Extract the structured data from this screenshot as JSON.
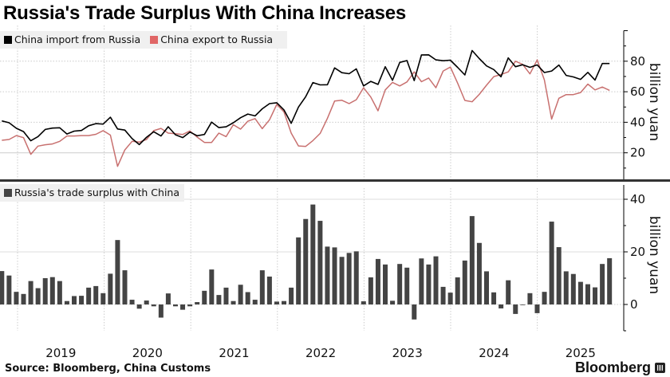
{
  "title": "Russia's Trade Surplus With China Increases",
  "source": "Source: Bloomberg, China Customs",
  "brand": "Bloomberg",
  "colors": {
    "import": "#000000",
    "export": "#c8706f",
    "surplus": "#444444",
    "grid": "#cccccc"
  },
  "chart_data": [
    {
      "type": "line",
      "legend": [
        "China import from Russia",
        "China export to Russia"
      ],
      "legend_position": "top-left",
      "ylabel": "billion yuan",
      "ylim": [
        0,
        100
      ],
      "yticks": [
        "20",
        "40",
        "60",
        "80"
      ],
      "xticks": [
        "2019",
        "2020",
        "2021",
        "2022",
        "2023",
        "2024",
        "2025"
      ],
      "grid": true,
      "series": [
        {
          "name": "China import from Russia",
          "values": [
            40.9,
            39.7,
            36.1,
            33.9,
            27.9,
            30.6,
            35.3,
            36.2,
            36.4,
            32.3,
            34.2,
            34.6,
            37.7,
            39.1,
            38.8,
            43.3,
            35.6,
            34.9,
            29.3,
            25.4,
            30.2,
            33.8,
            31.0,
            37.1,
            31.8,
            30.0,
            33.6,
            31.2,
            32.0,
            40.1,
            36.5,
            37.0,
            39.7,
            43.0,
            45.4,
            44.2,
            48.8,
            52.2,
            52.8,
            48.1,
            39.3,
            50.0,
            56.7,
            66.0,
            64.5,
            64.6,
            75.6,
            72.5,
            71.8,
            75.0,
            63.8,
            66.8,
            64.8,
            76.4,
            67.5,
            79.2,
            80.4,
            67.3,
            84.1,
            84.2,
            80.9,
            80.3,
            80.7,
            76.0,
            71.0,
            87.0,
            81.7,
            76.9,
            74.5,
            69.8,
            82.2,
            76.4,
            77.7,
            76.0,
            77.6,
            72.6,
            73.6,
            77.5,
            70.7,
            69.7,
            68.1,
            72.7,
            67.7,
            78.5,
            78.5
          ]
        },
        {
          "name": "China export to Russia",
          "values": [
            28.2,
            28.7,
            31.3,
            29.9,
            19.0,
            24.4,
            25.3,
            25.8,
            27.5,
            31.0,
            31.0,
            31.3,
            31.3,
            32.1,
            34.5,
            31.6,
            11.1,
            21.9,
            27.5,
            27.0,
            28.7,
            34.5,
            36.0,
            32.9,
            32.5,
            32.0,
            34.3,
            30.3,
            26.8,
            26.8,
            32.9,
            30.6,
            38.4,
            35.5,
            40.7,
            42.4,
            35.8,
            41.6,
            51.7,
            46.8,
            32.9,
            24.5,
            24.2,
            28.0,
            32.7,
            42.6,
            53.9,
            54.4,
            52.2,
            54.8,
            62.6,
            56.5,
            47.5,
            61.2,
            66.1,
            63.8,
            66.4,
            73.0,
            66.6,
            69.0,
            62.6,
            73.6,
            76.2,
            65.7,
            54.3,
            53.4,
            58.3,
            64.3,
            69.9,
            71.3,
            73.0,
            80.0,
            77.9,
            71.7,
            80.9,
            67.8,
            42.1,
            55.7,
            58.1,
            58.1,
            59.5,
            65.0,
            61.2,
            63.1,
            60.9
          ]
        }
      ]
    },
    {
      "type": "bar",
      "legend": [
        "Russia's trade surplus with China"
      ],
      "legend_position": "top-left",
      "ylabel": "billion yuan",
      "ylim": [
        -10,
        45
      ],
      "yticks": [
        "0",
        "20",
        "40"
      ],
      "xticks": [
        "2019",
        "2020",
        "2021",
        "2022",
        "2023",
        "2024",
        "2025"
      ],
      "grid": true,
      "series": [
        {
          "name": "Russia's trade surplus with China",
          "values": [
            12.7,
            11.0,
            4.8,
            4.0,
            8.9,
            6.2,
            10.0,
            10.4,
            8.9,
            1.3,
            3.2,
            3.3,
            6.4,
            7.0,
            4.3,
            11.7,
            24.5,
            13.0,
            1.8,
            -1.6,
            1.5,
            -0.7,
            -5.0,
            4.2,
            -0.7,
            -2.0,
            -0.7,
            0.9,
            5.2,
            13.3,
            3.6,
            6.4,
            1.3,
            7.5,
            4.7,
            1.8,
            13.0,
            10.6,
            1.1,
            1.3,
            6.4,
            25.5,
            32.5,
            38.0,
            31.8,
            22.0,
            21.7,
            18.1,
            19.6,
            20.2,
            1.2,
            10.3,
            17.3,
            15.2,
            1.4,
            15.4,
            14.0,
            -5.7,
            17.5,
            15.2,
            18.3,
            6.7,
            4.5,
            10.3,
            16.7,
            33.6,
            23.4,
            12.6,
            4.6,
            -1.5,
            9.2,
            -3.6,
            -0.2,
            4.3,
            -3.3,
            4.8,
            31.5,
            21.8,
            12.6,
            11.6,
            8.6,
            7.7,
            6.5,
            15.4,
            17.6
          ]
        }
      ]
    }
  ]
}
